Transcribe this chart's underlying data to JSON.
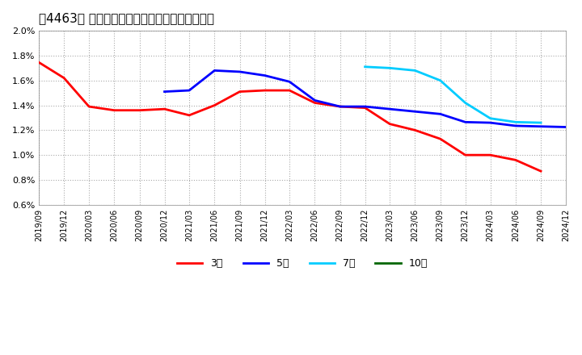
{
  "title": "［4463］ 当期純利益マージンの標準偏差の推移",
  "ylim": [
    0.006,
    0.02
  ],
  "yticks": [
    0.006,
    0.008,
    0.01,
    0.012,
    0.014,
    0.016,
    0.018,
    0.02
  ],
  "background_color": "#ffffff",
  "grid_color": "#aaaaaa",
  "series": {
    "3年": {
      "color": "#ff0000",
      "data": [
        [
          "2019-09",
          0.01745
        ],
        [
          "2019-12",
          0.0162
        ],
        [
          "2020-03",
          0.0139
        ],
        [
          "2020-06",
          0.0136
        ],
        [
          "2020-09",
          0.0136
        ],
        [
          "2020-12",
          0.0137
        ],
        [
          "2021-03",
          0.0132
        ],
        [
          "2021-06",
          0.014
        ],
        [
          "2021-09",
          0.0151
        ],
        [
          "2021-12",
          0.0152
        ],
        [
          "2022-03",
          0.0152
        ],
        [
          "2022-06",
          0.0142
        ],
        [
          "2022-09",
          0.0139
        ],
        [
          "2022-12",
          0.0138
        ],
        [
          "2023-03",
          0.0125
        ],
        [
          "2023-06",
          0.012
        ],
        [
          "2023-09",
          0.0113
        ],
        [
          "2023-12",
          0.01
        ],
        [
          "2024-03",
          0.01
        ],
        [
          "2024-06",
          0.0096
        ],
        [
          "2024-09",
          0.0087
        ]
      ]
    },
    "5年": {
      "color": "#0000ff",
      "data": [
        [
          "2020-12",
          0.0151
        ],
        [
          "2021-03",
          0.0152
        ],
        [
          "2021-06",
          0.0168
        ],
        [
          "2021-09",
          0.0167
        ],
        [
          "2021-12",
          0.0164
        ],
        [
          "2022-03",
          0.0159
        ],
        [
          "2022-06",
          0.0144
        ],
        [
          "2022-09",
          0.0139
        ],
        [
          "2022-12",
          0.0139
        ],
        [
          "2023-03",
          0.0137
        ],
        [
          "2023-06",
          0.0135
        ],
        [
          "2023-09",
          0.0133
        ],
        [
          "2023-12",
          0.01265
        ],
        [
          "2024-03",
          0.0126
        ],
        [
          "2024-06",
          0.01235
        ],
        [
          "2024-09",
          0.0123
        ],
        [
          "2024-12",
          0.01225
        ]
      ]
    },
    "7年": {
      "color": "#00ccff",
      "data": [
        [
          "2022-12",
          0.0171
        ],
        [
          "2023-03",
          0.017
        ],
        [
          "2023-06",
          0.0168
        ],
        [
          "2023-09",
          0.016
        ],
        [
          "2023-12",
          0.0142
        ],
        [
          "2024-03",
          0.01295
        ],
        [
          "2024-06",
          0.01265
        ],
        [
          "2024-09",
          0.0126
        ]
      ]
    },
    "10年": {
      "color": "#006600",
      "data": []
    }
  },
  "legend": {
    "labels": [
      "3年",
      "5年",
      "7年",
      "10年"
    ],
    "colors": [
      "#ff0000",
      "#0000ff",
      "#00ccff",
      "#006600"
    ]
  }
}
